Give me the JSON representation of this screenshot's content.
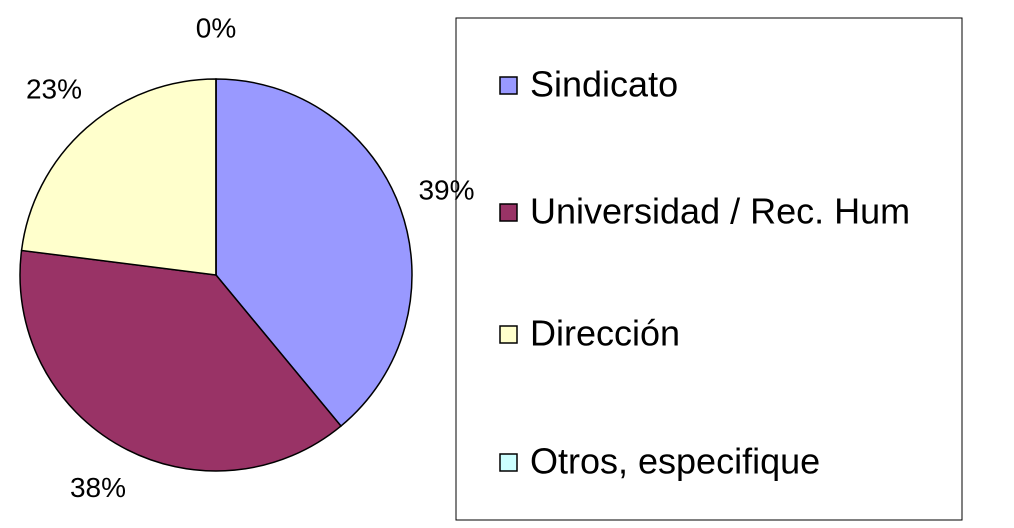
{
  "chart_data": {
    "type": "pie",
    "categories": [
      "Sindicato",
      "Universidad / Rec. Hum",
      "Dirección",
      "Otros, especifique"
    ],
    "values": [
      39,
      38,
      23,
      0
    ],
    "value_labels": [
      "39%",
      "38%",
      "23%",
      "0%"
    ],
    "colors": [
      "#9999ff",
      "#993366",
      "#ffffcc",
      "#ccffff"
    ],
    "legend": "right"
  }
}
